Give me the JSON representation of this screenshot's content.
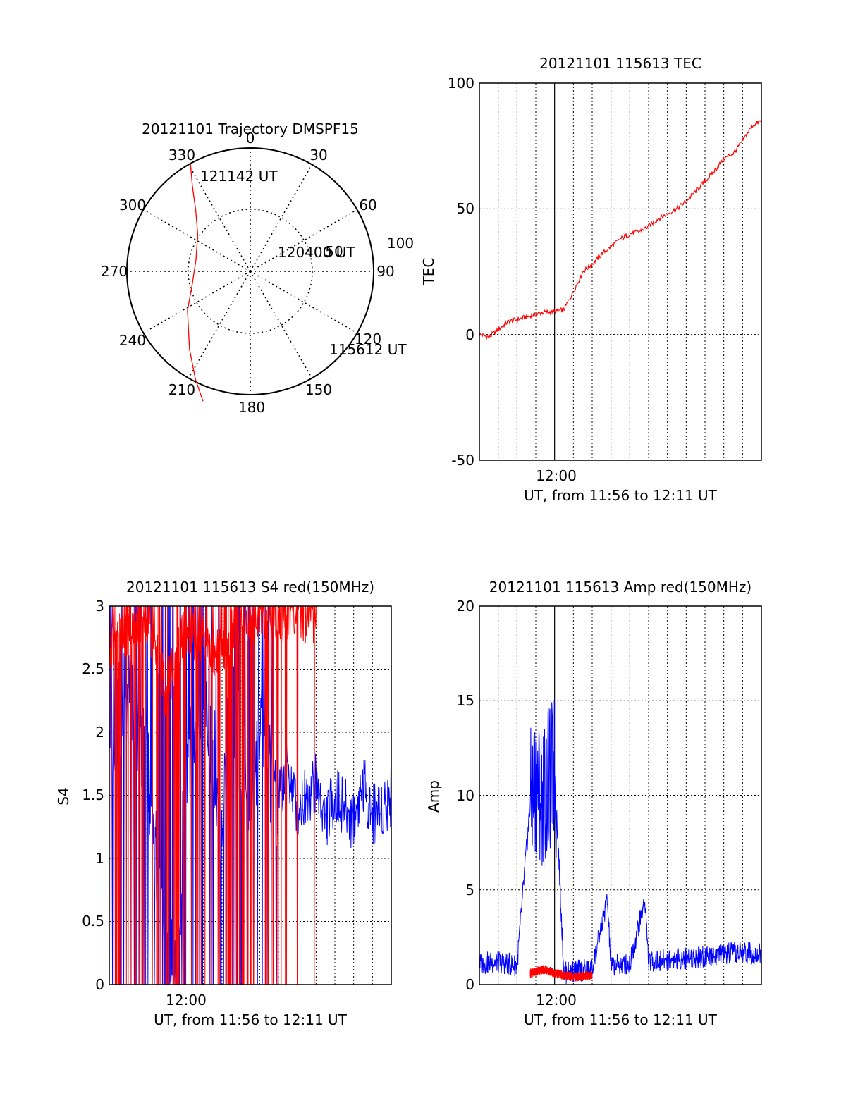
{
  "chart_data": [
    {
      "type": "polar",
      "title": "20121101 Trajectory DMSPF15",
      "angle_ticks": [
        "0",
        "30",
        "60",
        "90",
        "120",
        "150",
        "180",
        "210",
        "240",
        "270",
        "300",
        "330"
      ],
      "radial_ticks": [
        "50",
        "100"
      ],
      "series": [
        {
          "color": "#ff0000",
          "points": [
            {
              "az": 331,
              "r": 100
            },
            {
              "az": 326,
              "r": 84
            },
            {
              "az": 318,
              "r": 66
            },
            {
              "az": 305,
              "r": 52
            },
            {
              "az": 282,
              "r": 45
            },
            {
              "az": 258,
              "r": 48
            },
            {
              "az": 238,
              "r": 60
            },
            {
              "az": 218,
              "r": 80
            },
            {
              "az": 207,
              "r": 98
            },
            {
              "az": 200,
              "r": 112
            }
          ]
        }
      ],
      "annotations": [
        {
          "text": "121142 UT",
          "az": 330,
          "r": 100
        },
        {
          "text": "120400 UT",
          "az": 256,
          "r": 48
        },
        {
          "text": "115612 UT",
          "az": 200,
          "r": 112
        }
      ]
    },
    {
      "type": "line",
      "title": "20121101 115613 TEC",
      "ylabel": "TEC",
      "xlabel": "UT, from 11:56 to 12:11 UT",
      "xtick_labels": [
        "12:00"
      ],
      "ylim": [
        -50,
        100
      ],
      "yticks": [
        "-50",
        "0",
        "50",
        "100"
      ],
      "grid": true,
      "series": [
        {
          "color": "#ff0000",
          "x": [
            0,
            0.5,
            1,
            1.5,
            2,
            2.5,
            3,
            3.5,
            4,
            4.5,
            5,
            5.5,
            6,
            6.5,
            7,
            7.5,
            8,
            8.5,
            9,
            9.5,
            10,
            10.5,
            11,
            11.5,
            12,
            12.5,
            13,
            13.5,
            14,
            14.5,
            15
          ],
          "values": [
            0,
            -1,
            2,
            5,
            6,
            7,
            8,
            9,
            9,
            10,
            17,
            25,
            28,
            32,
            35,
            38,
            40,
            41,
            43,
            46,
            48,
            50,
            53,
            57,
            61,
            65,
            70,
            72,
            77,
            83,
            85
          ]
        }
      ]
    },
    {
      "type": "line",
      "title": "20121101 115613 S4 red(150MHz)",
      "ylabel": "S4",
      "xlabel": "UT, from 11:56 to 12:11 UT",
      "xtick_labels": [
        "12:00"
      ],
      "ylim": [
        0,
        3
      ],
      "yticks": [
        "0",
        "0.5",
        "1",
        "1.5",
        "2",
        "2.5",
        "3"
      ],
      "grid": true,
      "series": [
        {
          "color": "#0000ff",
          "x": [
            0,
            1,
            2,
            3,
            3.7,
            4,
            5,
            6,
            6.5,
            7,
            7.5,
            8,
            8.5,
            9,
            9.5,
            10,
            10.5,
            11,
            11.5,
            12,
            12.5,
            13,
            13.5,
            14,
            14.5,
            15
          ],
          "values": [
            2.1,
            2.5,
            2.0,
            0.25,
            0.28,
            1.9,
            2.6,
            1.5,
            2.4,
            2.0,
            1.6,
            2.2,
            1.9,
            1.5,
            1.7,
            1.4,
            1.5,
            1.6,
            1.3,
            1.5,
            1.4,
            1.3,
            1.6,
            1.35,
            1.4,
            1.5
          ]
        },
        {
          "color": "#ff0000",
          "x": [
            0,
            1,
            2,
            3,
            4,
            5,
            6,
            7,
            8,
            9,
            10,
            11
          ],
          "values": [
            2.8,
            2.9,
            3.0,
            2.4,
            2.9,
            2.8,
            2.7,
            3.0,
            3.0,
            3.0,
            3.0,
            3.0
          ]
        }
      ]
    },
    {
      "type": "line",
      "title": "20121101 115613 Amp red(150MHz)",
      "ylabel": "Amp",
      "xlabel": "UT, from 11:56 to 12:11 UT",
      "xtick_labels": [
        "12:00"
      ],
      "ylim": [
        0,
        20
      ],
      "yticks": [
        "0",
        "5",
        "10",
        "15",
        "20"
      ],
      "grid": true,
      "series": [
        {
          "color": "#0000ff",
          "x": [
            0,
            1,
            2,
            2.7,
            3,
            3.5,
            4,
            4.5,
            5,
            6,
            6.8,
            7,
            8,
            8.8,
            9,
            10,
            11,
            12,
            13,
            14,
            15
          ],
          "values": [
            1.1,
            1.2,
            1.0,
            9.5,
            10.5,
            10.0,
            11.5,
            0.6,
            0.7,
            0.8,
            4.5,
            1.0,
            1.1,
            4.5,
            1.2,
            1.3,
            1.4,
            1.5,
            1.6,
            1.7,
            1.6
          ]
        },
        {
          "color": "#ff0000",
          "x": [
            2.7,
            3,
            3.5,
            4,
            5,
            6
          ],
          "values": [
            0.6,
            0.7,
            0.8,
            0.6,
            0.4,
            0.5
          ]
        }
      ]
    }
  ]
}
